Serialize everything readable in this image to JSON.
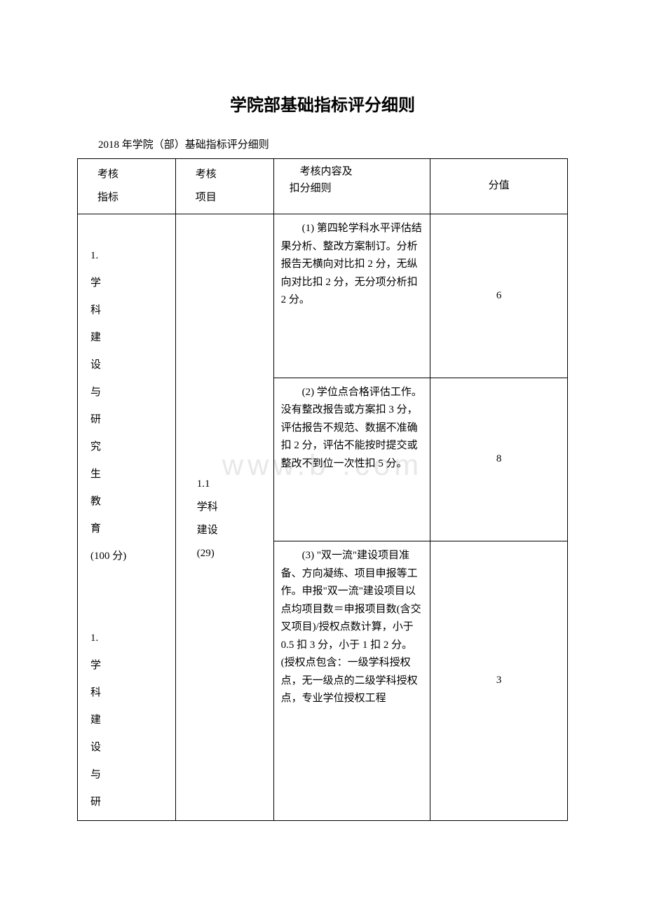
{
  "title": "学院部基础指标评分细则",
  "subtitle": "2018 年学院（部）基础指标评分细则",
  "watermark": "www.b    .com",
  "headers": {
    "col1_line1": "考核",
    "col1_line2": "指标",
    "col2_line1": "考核",
    "col2_line2": "项目",
    "col3_line1": "考核内容及",
    "col3_line2": "扣分细则",
    "col4": "分值"
  },
  "indicator": "1.\n学\n科\n建\n设\n与\n研\n究\n生\n教\n育\n(100 分)\n\n1.\n学\n科\n建\n设\n与\n研",
  "project": "1.1\n学科\n建设\n(29)",
  "rows": [
    {
      "content": "(1) 第四轮学科水平评估结果分析、整改方案制订。分析报告无横向对比扣 2 分，无纵向对比扣 2 分，无分项分析扣 2 分。",
      "score": "6"
    },
    {
      "content": "(2) 学位点合格评估工作。没有整改报告或方案扣 3 分，评估报告不规范、数据不准确扣 2 分，评估不能按时提交或整改不到位一次性扣 5 分。",
      "score": "8"
    },
    {
      "content": "(3) \"双一流\"建设项目准备、方向凝练、项目申报等工作。申报\"双一流\"建设项目以点均项目数＝申报项目数(含交叉项目)/授权点数计算，小于 0.5 扣 3 分，小于 1 扣 2 分。(授权点包含：一级学科授权点，无一级点的二级学科授权点，专业学位授权工程",
      "score": "3"
    }
  ]
}
